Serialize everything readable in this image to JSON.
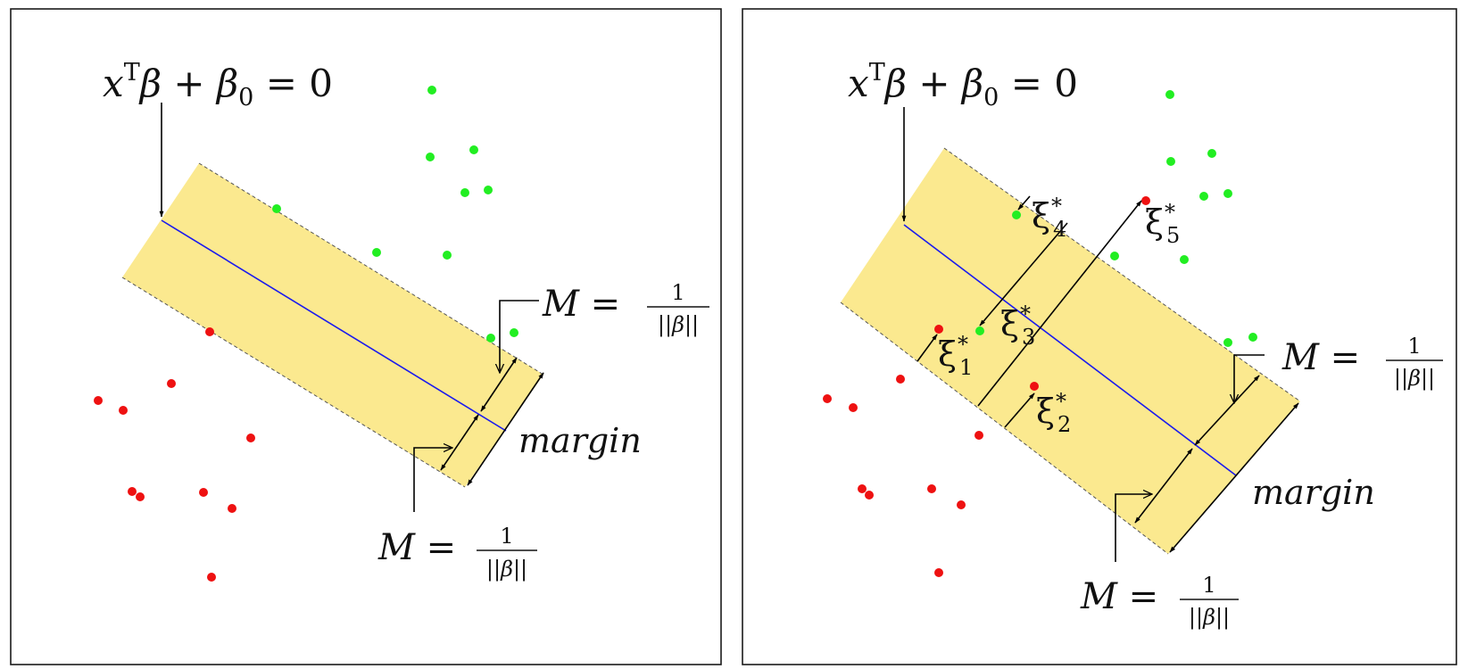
{
  "colors": {
    "positive_point": "#22ee22",
    "negative_point": "#ee1111",
    "margin_band": "#fbe98f",
    "hyperplane": "#1a1aee"
  },
  "left_panel": {
    "hyperplane_label": {
      "lhs1": "x",
      "sup": "T",
      "lhs2": "β + β",
      "sub": "0",
      "rhs": " = 0"
    },
    "margin_label": "margin",
    "m_upper": {
      "lhs": "M = ",
      "num": "1",
      "den": "||β||"
    },
    "m_lower": {
      "lhs": "M = ",
      "num": "1",
      "den": "||β||"
    }
  },
  "right_panel": {
    "hyperplane_label": {
      "lhs1": "x",
      "sup": "T",
      "lhs2": "β + β",
      "sub": "0",
      "rhs": " = 0"
    },
    "margin_label": "margin",
    "m_upper": {
      "lhs": "M = ",
      "num": "1",
      "den": "||β||"
    },
    "m_lower": {
      "lhs": "M = ",
      "num": "1",
      "den": "||β||"
    },
    "slacks": [
      {
        "sym": "ξ",
        "sub": "1",
        "sup": "*"
      },
      {
        "sym": "ξ",
        "sub": "2",
        "sup": "*"
      },
      {
        "sym": "ξ",
        "sub": "3",
        "sup": "*"
      },
      {
        "sym": "ξ",
        "sub": "4",
        "sup": "*"
      },
      {
        "sym": "ξ",
        "sub": "5",
        "sup": "*"
      }
    ]
  }
}
